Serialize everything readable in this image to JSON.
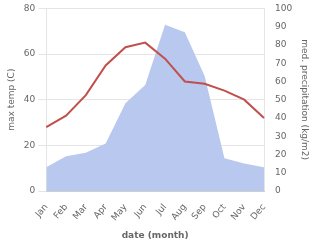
{
  "chart_data": {
    "type": "line",
    "xlabel": "date (month)",
    "ylabel": "max temp (C)",
    "y2label": "med. precipitation (kg/m2)",
    "categories": [
      "Jan",
      "Feb",
      "Mar",
      "Apr",
      "May",
      "Jun",
      "Jul",
      "Aug",
      "Sep",
      "Oct",
      "Nov",
      "Dec"
    ],
    "series": [
      {
        "type": "area",
        "color": "#b8c8ee",
        "axis": "y2",
        "values": [
          13,
          19,
          21,
          26,
          48,
          58,
          91,
          87,
          63,
          18,
          15,
          13
        ]
      },
      {
        "type": "line",
        "color": "#c0504d",
        "values": [
          28,
          33,
          42,
          55,
          63,
          65,
          58,
          48,
          47,
          44,
          40,
          32
        ]
      }
    ],
    "ylim": [
      0,
      80
    ],
    "yticks": [
      0,
      20,
      40,
      60,
      80
    ],
    "y2lim": [
      0,
      100
    ],
    "y2ticks": [
      0,
      10,
      20,
      30,
      40,
      50,
      60,
      70,
      80,
      90,
      100
    ],
    "grid": true
  }
}
